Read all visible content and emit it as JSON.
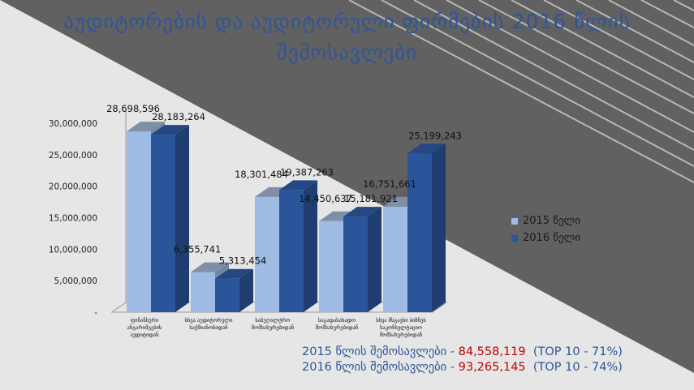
{
  "title": {
    "line1": "აუდიტორების და აუდიტორული ფირმების 2016 წლის",
    "line2": "შემოსავლები"
  },
  "colors": {
    "series_2015": "#9dbbe3",
    "series_2016": "#2b559a",
    "title": "#2f5597",
    "highlight": "#c00000"
  },
  "chart_data": {
    "type": "bar",
    "categories": [
      [
        "ფინანსური",
        "ანგარიშგების",
        "აუდიტიდან"
      ],
      [
        "სხვა აუდიტორული",
        "საქმიანობიდან"
      ],
      [
        "საბუღალტრო",
        "მომსახურებიდან"
      ],
      [
        "საგადასახადო",
        "მომსახურებიდან"
      ],
      [
        "სხვა მსგავსი ბიზნეს",
        "საკონსულტაციო",
        "მომსახურებიდან"
      ]
    ],
    "series": [
      {
        "name": "2015 წელი",
        "values": [
          28698596,
          6355741,
          18301484,
          14450637,
          16751661
        ]
      },
      {
        "name": "2016 წელი",
        "values": [
          28183264,
          5313454,
          19387263,
          15181921,
          25199243
        ]
      }
    ],
    "value_labels": [
      [
        "28,698,596",
        "6,355,741",
        "18,301,484",
        "14,450,637",
        "16,751,661"
      ],
      [
        "28,183,264",
        "5,313,454",
        "19,387,263",
        "15,181,921",
        "25,199,243"
      ]
    ],
    "yticks": [
      0,
      5000000,
      10000000,
      15000000,
      20000000,
      25000000,
      30000000
    ],
    "ytick_labels": [
      "-",
      "5,000,000",
      "10,000,000",
      "15,000,000",
      "20,000,000",
      "25,000,000",
      "30,000,000"
    ],
    "ylim": [
      0,
      30000000
    ],
    "legend_position": "right",
    "grid": false
  },
  "summary": [
    {
      "label": "2015 წლის შემოსავლები - ",
      "value": "84,558,119",
      "note": "  (TOP 10 - 71%)"
    },
    {
      "label": "2016 წლის შემოსავლები - ",
      "value": "93,265,145",
      "note": "  (TOP 10 - 74%)"
    }
  ]
}
